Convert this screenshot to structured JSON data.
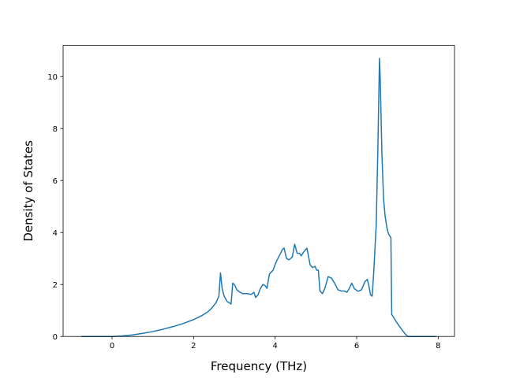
{
  "chart_data": {
    "type": "line",
    "title": "",
    "xlabel": "Frequency (THz)",
    "ylabel": "Density of States",
    "xlim": [
      -1.2,
      8.4
    ],
    "ylim": [
      0,
      11.2
    ],
    "xticks": [
      0,
      2,
      4,
      6,
      8
    ],
    "yticks": [
      0,
      2,
      4,
      6,
      8,
      10
    ],
    "xtick_labels": [
      "0",
      "2",
      "4",
      "6",
      "8"
    ],
    "ytick_labels": [
      "0",
      "2",
      "4",
      "6",
      "8",
      "10"
    ],
    "grid": false,
    "series": [
      {
        "color": "#1f77b4",
        "x": [
          -0.75,
          -0.5,
          -0.25,
          0.0,
          0.25,
          0.5,
          0.75,
          1.0,
          1.25,
          1.5,
          1.75,
          2.0,
          2.2,
          2.35,
          2.45,
          2.55,
          2.62,
          2.66,
          2.7,
          2.75,
          2.82,
          2.92,
          2.96,
          3.0,
          3.06,
          3.12,
          3.2,
          3.3,
          3.42,
          3.48,
          3.52,
          3.58,
          3.64,
          3.7,
          3.76,
          3.8,
          3.86,
          3.95,
          4.02,
          4.1,
          4.18,
          4.22,
          4.28,
          4.34,
          4.42,
          4.48,
          4.54,
          4.6,
          4.64,
          4.7,
          4.78,
          4.86,
          4.92,
          4.98,
          5.02,
          5.06,
          5.1,
          5.16,
          5.22,
          5.3,
          5.38,
          5.46,
          5.54,
          5.62,
          5.7,
          5.76,
          5.82,
          5.88,
          5.94,
          6.02,
          6.06,
          6.12,
          6.2,
          6.26,
          6.3,
          6.34,
          6.38,
          6.42,
          6.48,
          6.52,
          6.56,
          6.58,
          6.62,
          6.66,
          6.7,
          6.74,
          6.78,
          6.84,
          6.86,
          6.92,
          7.0,
          7.1,
          7.2,
          7.26,
          7.4,
          7.6,
          7.95
        ],
        "y": [
          0.0,
          0.0,
          0.0,
          0.0,
          0.02,
          0.06,
          0.12,
          0.19,
          0.28,
          0.38,
          0.5,
          0.65,
          0.8,
          0.95,
          1.1,
          1.3,
          1.55,
          2.45,
          1.85,
          1.55,
          1.35,
          1.25,
          2.05,
          2.0,
          1.8,
          1.72,
          1.65,
          1.65,
          1.62,
          1.7,
          1.5,
          1.6,
          1.85,
          2.0,
          1.95,
          1.85,
          2.4,
          2.55,
          2.85,
          3.1,
          3.35,
          3.4,
          3.0,
          2.95,
          3.05,
          3.55,
          3.2,
          3.2,
          3.1,
          3.25,
          3.4,
          2.75,
          2.65,
          2.7,
          2.55,
          2.55,
          1.75,
          1.65,
          1.85,
          2.3,
          2.25,
          2.05,
          1.8,
          1.75,
          1.75,
          1.7,
          1.85,
          2.05,
          1.85,
          1.75,
          1.75,
          1.8,
          2.1,
          2.2,
          1.95,
          1.6,
          1.55,
          2.5,
          4.3,
          7.2,
          10.7,
          9.8,
          7.0,
          5.3,
          4.6,
          4.2,
          3.95,
          3.8,
          0.85,
          0.7,
          0.5,
          0.28,
          0.08,
          0.0,
          0.0,
          0.0,
          0.0
        ]
      }
    ]
  }
}
